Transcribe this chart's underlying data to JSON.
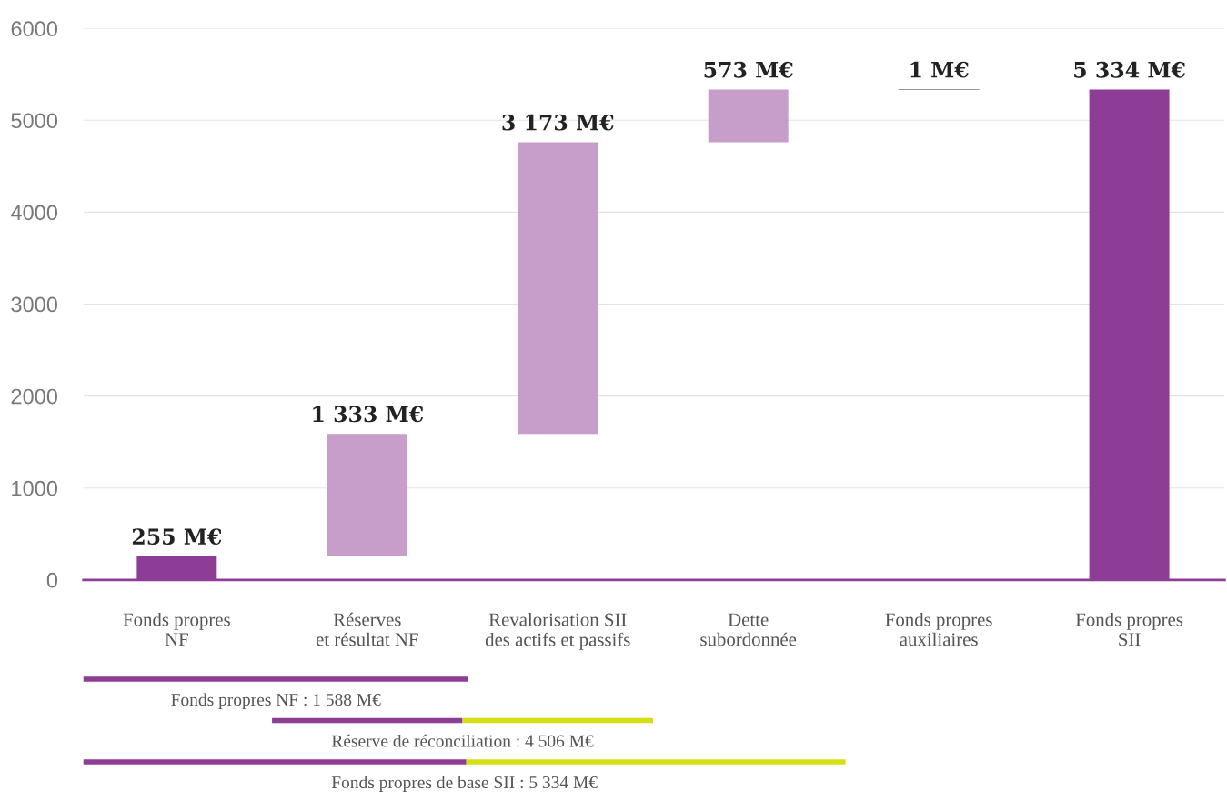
{
  "chart_data": {
    "type": "bar",
    "categories": [
      "Fonds propres\nNF",
      "Réserves\net résultat NF",
      "Revalorisation SII\ndes actifs et passifs",
      "Dette\nsubordonnée",
      "Fonds propres\nauxiliaires",
      "Fonds propres\nSII"
    ],
    "values": [
      255,
      1333,
      3173,
      573,
      1,
      5334
    ],
    "base": [
      0,
      255,
      1588,
      4761,
      5334,
      0
    ],
    "colors": [
      "#8e3d96",
      "#c79dc9",
      "#c79dc9",
      "#c79dc9",
      "#c79dc9",
      "#8e3d96"
    ],
    "value_labels": [
      "255 M€",
      "1 333 M€",
      "3 173 M€",
      "573 M€",
      "1 M€",
      "5 334 M€"
    ],
    "ylim": [
      0,
      6000
    ],
    "yticks": [
      0,
      1000,
      2000,
      3000,
      4000,
      5000,
      6000
    ],
    "grid": "y",
    "annotations": [
      "Fonds propres NF : 1 588 M€",
      "Réserve de réconciliation : 4 506 M€",
      "Fonds propres de base SII : 5 334 M€"
    ]
  }
}
